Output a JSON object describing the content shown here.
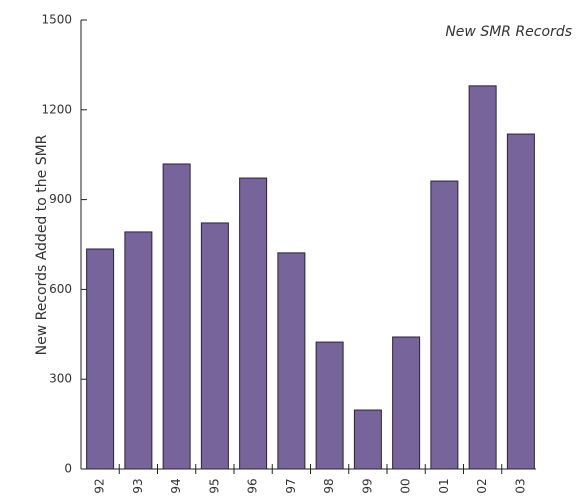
{
  "chart_data": {
    "type": "bar",
    "title": "New SMR Records",
    "y_label": "New Records Added to the SMR",
    "categories": [
      "92",
      "93",
      "94",
      "95",
      "96",
      "97",
      "98",
      "99",
      "00",
      "01",
      "02",
      "03"
    ],
    "values": [
      735,
      792,
      1019,
      822,
      972,
      722,
      424,
      197,
      441,
      962,
      1280,
      1119
    ],
    "color": "#76649a",
    "ylim": [
      0,
      1500
    ],
    "yticks": [
      0,
      300,
      600,
      900,
      1200,
      1500
    ],
    "grid": false
  }
}
